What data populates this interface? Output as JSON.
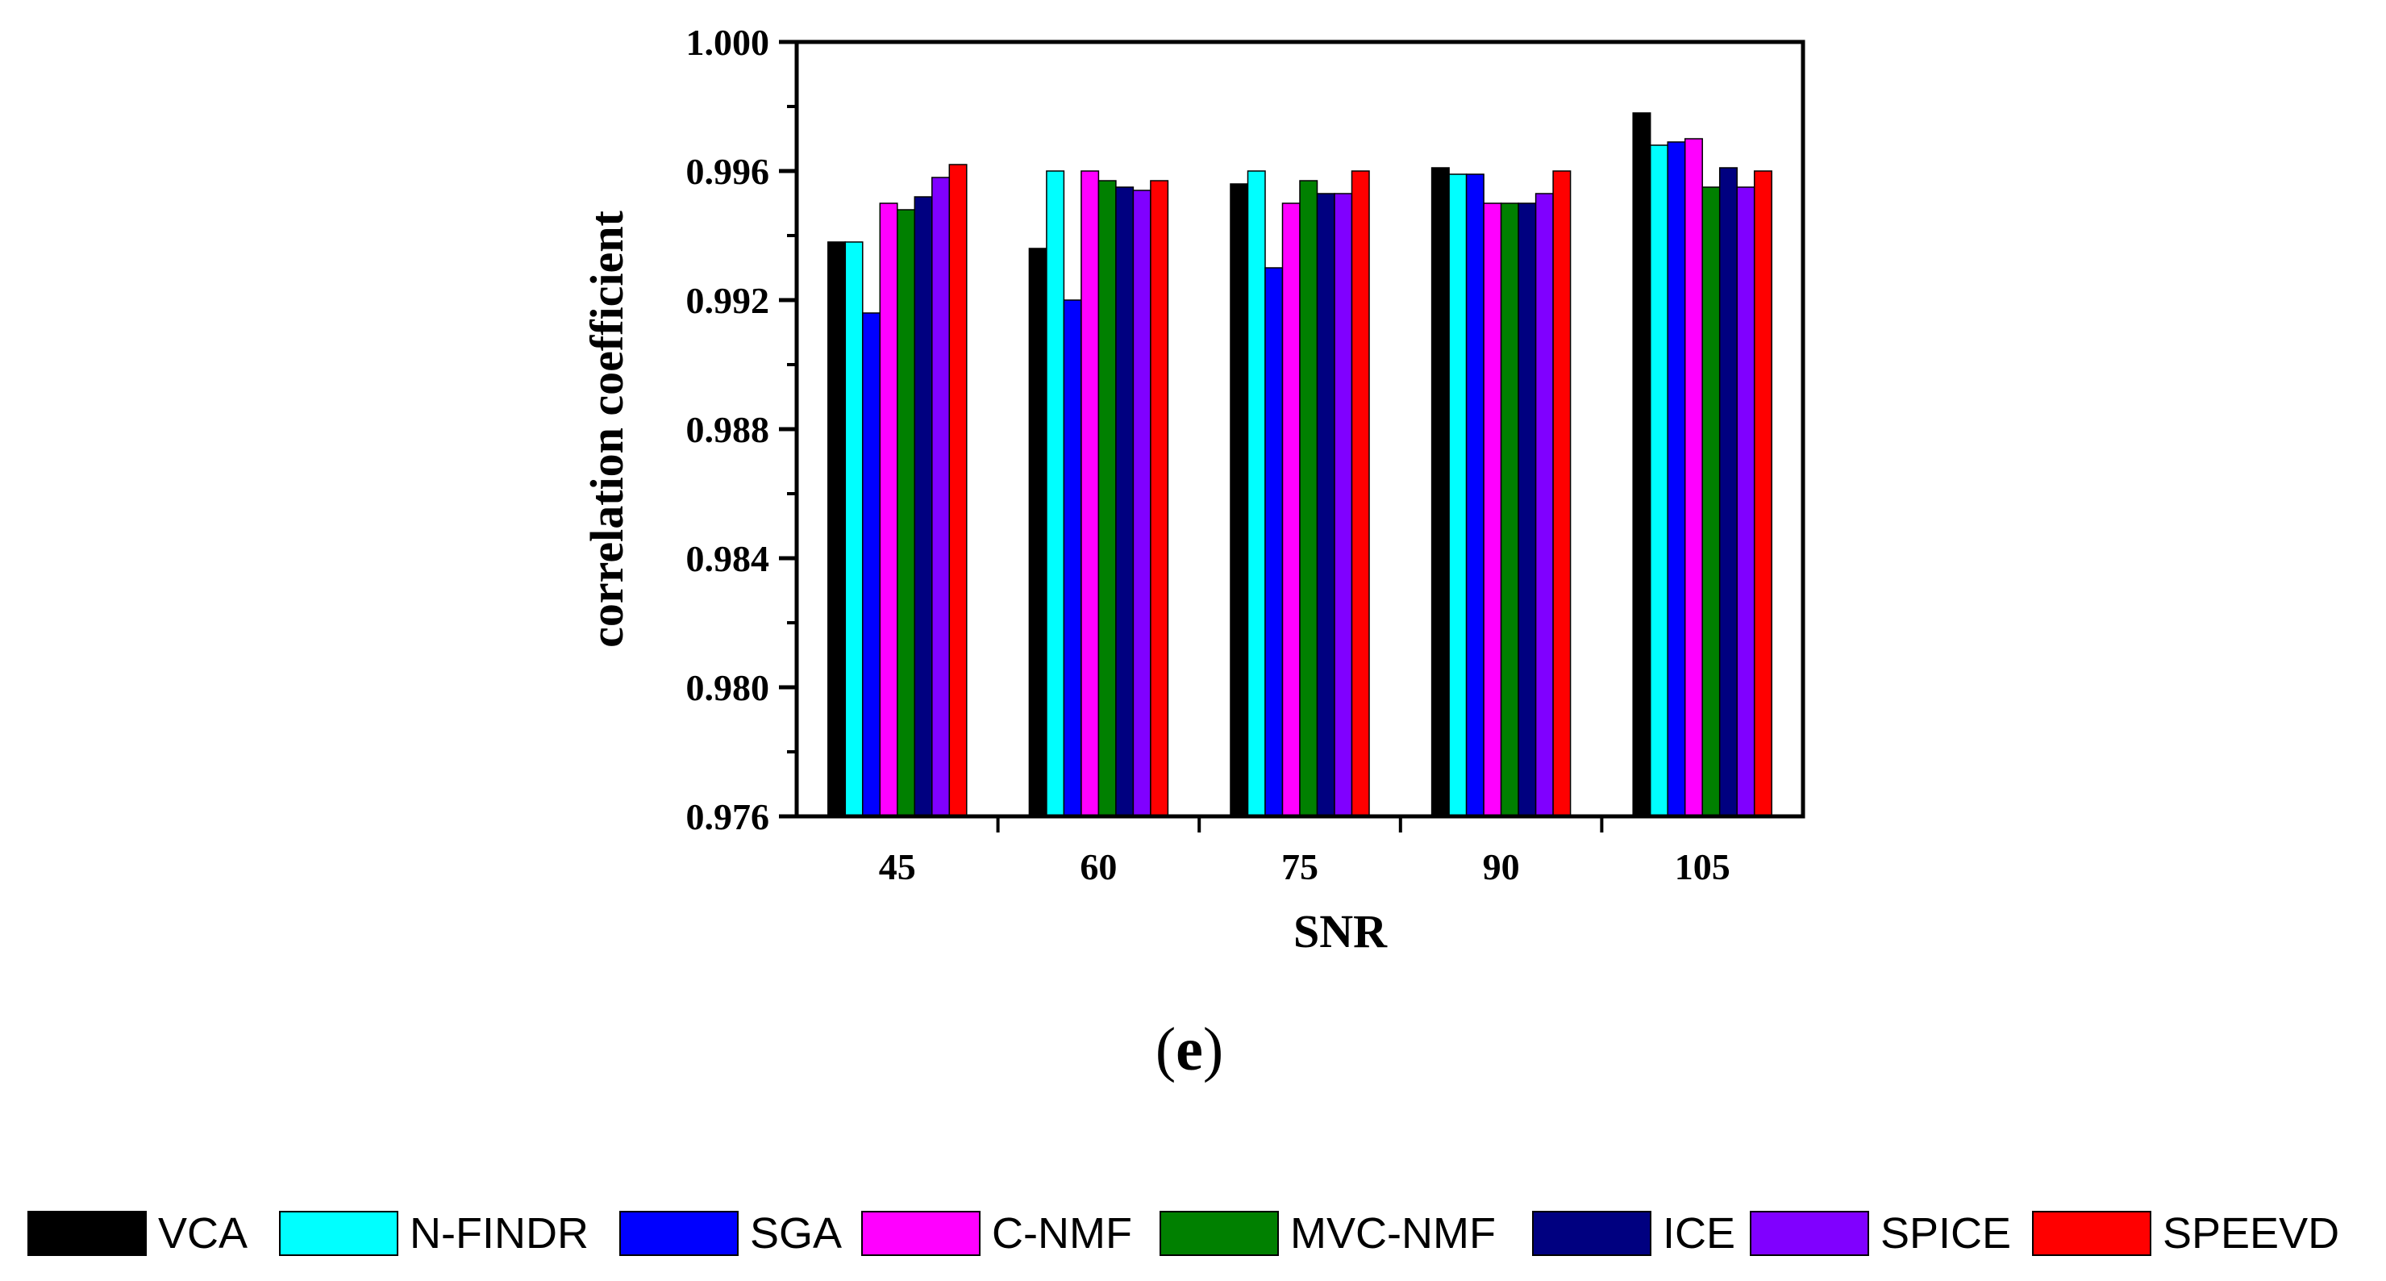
{
  "chart_data": {
    "type": "bar",
    "panel_label": "(e)",
    "panel_letter": "e",
    "xlabel": "SNR",
    "ylabel": "correlation coefficient",
    "categories": [
      "45",
      "60",
      "75",
      "90",
      "105"
    ],
    "ylim": [
      0.976,
      1.0
    ],
    "yticks": [
      "0.976",
      "0.980",
      "0.984",
      "0.988",
      "0.992",
      "0.996",
      "1.000"
    ],
    "legend_position": "bottom",
    "series": [
      {
        "name": "VCA",
        "color": "#000000",
        "values": [
          0.9938,
          0.9936,
          0.9956,
          0.9961,
          0.9978
        ]
      },
      {
        "name": "N-FINDR",
        "color": "#00ffff",
        "values": [
          0.9938,
          0.996,
          0.996,
          0.9959,
          0.9968
        ]
      },
      {
        "name": "SGA",
        "color": "#0000ff",
        "values": [
          0.9916,
          0.992,
          0.993,
          0.9959,
          0.9969
        ]
      },
      {
        "name": "C-NMF",
        "color": "#ff00ff",
        "values": [
          0.995,
          0.996,
          0.995,
          0.995,
          0.997
        ]
      },
      {
        "name": "MVC-NMF",
        "color": "#008000",
        "values": [
          0.9948,
          0.9957,
          0.9957,
          0.995,
          0.9955
        ]
      },
      {
        "name": "ICE",
        "color": "#000080",
        "values": [
          0.9952,
          0.9955,
          0.9953,
          0.995,
          0.9961
        ]
      },
      {
        "name": "SPICE",
        "color": "#8000ff",
        "values": [
          0.9958,
          0.9954,
          0.9953,
          0.9953,
          0.9955
        ]
      },
      {
        "name": "SPEEVD",
        "color": "#ff0000",
        "values": [
          0.9962,
          0.9957,
          0.996,
          0.996,
          0.996
        ]
      }
    ]
  }
}
